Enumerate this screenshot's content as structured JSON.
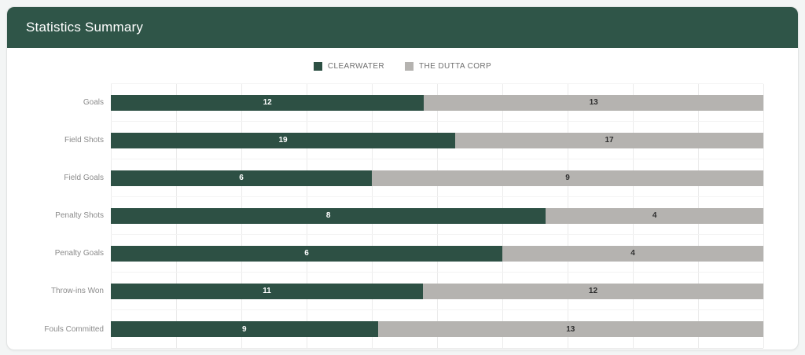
{
  "header": {
    "title": "Statistics Summary"
  },
  "legend": {
    "items": [
      {
        "label": "CLEARWATER",
        "color": "#2d5044"
      },
      {
        "label": "THE DUTTA CORP",
        "color": "#b5b3b0"
      }
    ]
  },
  "chart_data": {
    "type": "bar",
    "variant": "horizontal-stacked-normalized",
    "title": "Statistics Summary",
    "categories": [
      "Goals",
      "Field Shots",
      "Field Goals",
      "Penalty Shots",
      "Penalty Goals",
      "Throw-ins Won",
      "Fouls Committed"
    ],
    "series": [
      {
        "name": "CLEARWATER",
        "color": "#2d5044",
        "label_color": "#ffffff",
        "values": [
          12,
          19,
          6,
          8,
          6,
          11,
          9
        ]
      },
      {
        "name": "THE DUTTA CORP",
        "color": "#b5b3b0",
        "label_color": "#2f2f2f",
        "values": [
          13,
          17,
          9,
          4,
          4,
          12,
          13
        ]
      }
    ],
    "value_labels": true,
    "legend_position": "top",
    "xlabel": "",
    "ylabel": "",
    "grid": {
      "vertical_divisions": 10,
      "color": "#ebebeb"
    }
  },
  "colors": {
    "header_bg": "#2f5548",
    "header_text": "#ffffff",
    "page_bg": "#f3f5f5",
    "card_bg": "#ffffff",
    "card_border": "#e2e4e4",
    "category_label": "#8b8b8b",
    "legend_text": "#6f6f6f"
  }
}
